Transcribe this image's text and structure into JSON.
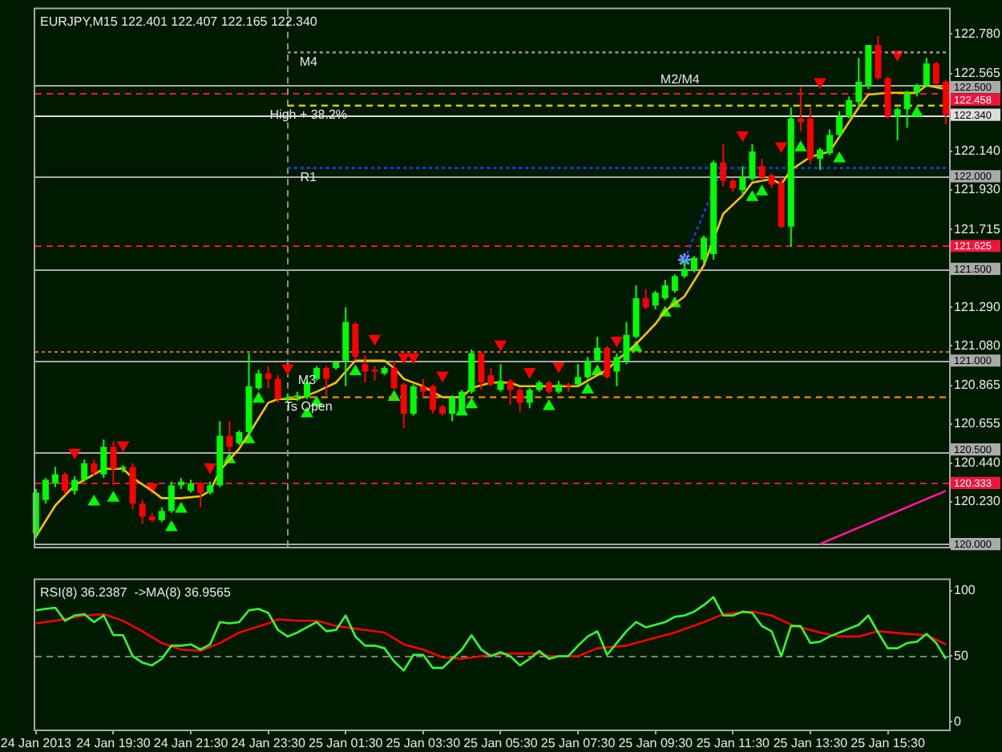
{
  "chart_data": [
    {
      "type": "candlestick",
      "title": "EURJPY,M15 122.401 122.407 122.165 122.340",
      "x": [
        "2013-01-24T17:30",
        "2013-01-24T17:45",
        "2013-01-24T18:00",
        "2013-01-24T18:15",
        "2013-01-24T18:30",
        "2013-01-24T18:45",
        "2013-01-24T19:00",
        "2013-01-24T19:15",
        "2013-01-24T19:30",
        "2013-01-24T19:45",
        "2013-01-24T20:00",
        "2013-01-24T20:15",
        "2013-01-24T20:30",
        "2013-01-24T20:45",
        "2013-01-24T21:00",
        "2013-01-24T21:15",
        "2013-01-24T21:30",
        "2013-01-24T21:45",
        "2013-01-24T22:00",
        "2013-01-24T22:15",
        "2013-01-24T22:30",
        "2013-01-24T22:45",
        "2013-01-24T23:00",
        "2013-01-24T23:15",
        "2013-01-24T23:30",
        "2013-01-24T23:45",
        "2013-01-25T00:00",
        "2013-01-25T00:15",
        "2013-01-25T00:30",
        "2013-01-25T00:45",
        "2013-01-25T01:00",
        "2013-01-25T01:15",
        "2013-01-25T01:30",
        "2013-01-25T01:45",
        "2013-01-25T02:00",
        "2013-01-25T02:15",
        "2013-01-25T02:30",
        "2013-01-25T02:45",
        "2013-01-25T03:00",
        "2013-01-25T03:15",
        "2013-01-25T03:30",
        "2013-01-25T03:45",
        "2013-01-25T04:00",
        "2013-01-25T04:15",
        "2013-01-25T04:30",
        "2013-01-25T04:45",
        "2013-01-25T05:00",
        "2013-01-25T05:15",
        "2013-01-25T05:30",
        "2013-01-25T05:45",
        "2013-01-25T06:00",
        "2013-01-25T06:15",
        "2013-01-25T06:30",
        "2013-01-25T06:45",
        "2013-01-25T07:00",
        "2013-01-25T07:15",
        "2013-01-25T07:30",
        "2013-01-25T07:45",
        "2013-01-25T08:00",
        "2013-01-25T08:15",
        "2013-01-25T08:30",
        "2013-01-25T08:45",
        "2013-01-25T09:00",
        "2013-01-25T09:15",
        "2013-01-25T09:30",
        "2013-01-25T09:45",
        "2013-01-25T10:00",
        "2013-01-25T10:15",
        "2013-01-25T10:30",
        "2013-01-25T10:45",
        "2013-01-25T11:00",
        "2013-01-25T11:15",
        "2013-01-25T11:30",
        "2013-01-25T11:45",
        "2013-01-25T12:00",
        "2013-01-25T12:15",
        "2013-01-25T12:30",
        "2013-01-25T12:45",
        "2013-01-25T13:00",
        "2013-01-25T13:15",
        "2013-01-25T13:30",
        "2013-01-25T13:45",
        "2013-01-25T14:00",
        "2013-01-25T14:15",
        "2013-01-25T14:30",
        "2013-01-25T14:45",
        "2013-01-25T15:00",
        "2013-01-25T15:15",
        "2013-01-25T15:30",
        "2013-01-25T15:45",
        "2013-01-25T16:00",
        "2013-01-25T16:15",
        "2013-01-25T16:30",
        "2013-01-25T16:45",
        "2013-01-25T17:00"
      ],
      "ohlc": [
        [
          120.06,
          120.3,
          120.03,
          120.28
        ],
        [
          120.24,
          120.36,
          120.22,
          120.35
        ],
        [
          120.33,
          120.42,
          120.31,
          120.38
        ],
        [
          120.38,
          120.39,
          120.27,
          120.29
        ],
        [
          120.29,
          120.37,
          120.27,
          120.35
        ],
        [
          120.35,
          120.46,
          120.34,
          120.44
        ],
        [
          120.44,
          120.46,
          120.37,
          120.39
        ],
        [
          120.38,
          120.57,
          120.36,
          120.53
        ],
        [
          120.53,
          120.56,
          120.32,
          120.41
        ],
        [
          120.41,
          120.43,
          120.39,
          120.42
        ],
        [
          120.42,
          120.44,
          120.19,
          120.22
        ],
        [
          120.22,
          120.24,
          120.11,
          120.15
        ],
        [
          120.15,
          120.17,
          120.12,
          120.13
        ],
        [
          120.13,
          120.2,
          120.12,
          120.18
        ],
        [
          120.18,
          120.34,
          120.17,
          120.32
        ],
        [
          120.32,
          120.36,
          120.3,
          120.34
        ],
        [
          120.29,
          120.35,
          120.28,
          120.33
        ],
        [
          120.33,
          120.34,
          120.2,
          120.28
        ],
        [
          120.28,
          120.34,
          120.27,
          120.32
        ],
        [
          120.32,
          120.67,
          120.31,
          120.59
        ],
        [
          120.59,
          120.67,
          120.5,
          120.53
        ],
        [
          120.55,
          120.62,
          120.54,
          120.61
        ],
        [
          120.61,
          121.04,
          120.59,
          120.86
        ],
        [
          120.85,
          120.95,
          120.84,
          120.93
        ],
        [
          120.93,
          120.97,
          120.85,
          120.9
        ],
        [
          120.9,
          120.92,
          120.77,
          120.79
        ],
        [
          120.79,
          120.82,
          120.77,
          120.8
        ],
        [
          120.8,
          120.83,
          120.78,
          120.81
        ],
        [
          120.8,
          120.89,
          120.79,
          120.88
        ],
        [
          120.9,
          120.97,
          120.89,
          120.96
        ],
        [
          120.96,
          120.97,
          120.81,
          120.9
        ],
        [
          120.96,
          121.0,
          120.95,
          120.99
        ],
        [
          121.0,
          121.29,
          120.86,
          121.21
        ],
        [
          121.2,
          121.21,
          121.0,
          121.02
        ],
        [
          120.98,
          121.03,
          120.88,
          120.94
        ],
        [
          120.95,
          120.97,
          120.89,
          120.94
        ],
        [
          120.93,
          120.97,
          120.92,
          120.96
        ],
        [
          120.96,
          121.0,
          120.84,
          120.85
        ],
        [
          120.87,
          120.88,
          120.63,
          120.71
        ],
        [
          120.71,
          120.87,
          120.7,
          120.86
        ],
        [
          120.86,
          120.9,
          120.8,
          120.83
        ],
        [
          120.86,
          120.87,
          120.71,
          120.73
        ],
        [
          120.75,
          120.76,
          120.7,
          120.71
        ],
        [
          120.71,
          120.81,
          120.67,
          120.8
        ],
        [
          120.73,
          120.84,
          120.72,
          120.83
        ],
        [
          120.83,
          121.06,
          120.82,
          121.04
        ],
        [
          121.04,
          121.05,
          120.84,
          120.88
        ],
        [
          120.92,
          120.96,
          120.86,
          120.87
        ],
        [
          120.84,
          120.98,
          120.83,
          120.89
        ],
        [
          120.89,
          120.9,
          120.76,
          120.84
        ],
        [
          120.84,
          120.85,
          120.72,
          120.77
        ],
        [
          120.77,
          120.85,
          120.74,
          120.84
        ],
        [
          120.84,
          120.89,
          120.83,
          120.88
        ],
        [
          120.88,
          120.89,
          120.82,
          120.83
        ],
        [
          120.83,
          120.89,
          120.82,
          120.87
        ],
        [
          120.87,
          120.88,
          120.83,
          120.86
        ],
        [
          120.87,
          120.98,
          120.86,
          120.91
        ],
        [
          120.91,
          121.02,
          120.9,
          121.0
        ],
        [
          121.0,
          121.13,
          120.99,
          121.07
        ],
        [
          121.07,
          121.08,
          120.9,
          120.91
        ],
        [
          120.94,
          121.04,
          120.86,
          121.02
        ],
        [
          121.0,
          121.21,
          120.98,
          121.14
        ],
        [
          121.13,
          121.41,
          121.12,
          121.34
        ],
        [
          121.34,
          121.39,
          121.28,
          121.29
        ],
        [
          121.3,
          121.38,
          121.28,
          121.37
        ],
        [
          121.34,
          121.44,
          121.33,
          121.41
        ],
        [
          121.38,
          121.47,
          121.37,
          121.46
        ],
        [
          121.46,
          121.55,
          121.45,
          121.5
        ],
        [
          121.49,
          121.57,
          121.48,
          121.56
        ],
        [
          121.55,
          121.68,
          121.53,
          121.67
        ],
        [
          121.58,
          122.09,
          121.55,
          122.08
        ],
        [
          122.08,
          122.18,
          121.95,
          121.98
        ],
        [
          121.98,
          121.99,
          121.92,
          121.94
        ],
        [
          121.93,
          122.06,
          121.9,
          122.0
        ],
        [
          121.99,
          122.18,
          121.98,
          122.14
        ],
        [
          122.06,
          122.1,
          121.98,
          122.0
        ],
        [
          122.01,
          122.02,
          121.94,
          121.96
        ],
        [
          121.97,
          122.0,
          121.72,
          121.73
        ],
        [
          121.73,
          122.38,
          121.62,
          122.32
        ],
        [
          122.32,
          122.49,
          122.25,
          122.3
        ],
        [
          122.32,
          122.38,
          122.07,
          122.1
        ],
        [
          122.1,
          122.16,
          122.04,
          122.15
        ],
        [
          122.13,
          122.26,
          122.12,
          122.23
        ],
        [
          122.23,
          122.36,
          122.22,
          122.33
        ],
        [
          122.33,
          122.44,
          122.32,
          122.42
        ],
        [
          122.41,
          122.65,
          122.38,
          122.52
        ],
        [
          122.5,
          122.72,
          122.48,
          122.72
        ],
        [
          122.72,
          122.77,
          122.53,
          122.54
        ],
        [
          122.54,
          122.55,
          122.32,
          122.33
        ],
        [
          122.33,
          122.38,
          122.2,
          122.37
        ],
        [
          122.37,
          122.47,
          122.27,
          122.46
        ],
        [
          122.46,
          122.51,
          122.44,
          122.5
        ],
        [
          122.5,
          122.65,
          122.49,
          122.62
        ],
        [
          122.62,
          122.63,
          122.5,
          122.51
        ],
        [
          122.52,
          122.53,
          122.29,
          122.34
        ]
      ],
      "colors": [
        "#00ff00",
        "#00ff00",
        "#00ff00",
        "#ff0000",
        "#00ff00",
        "#00ff00",
        "#ff0000",
        "#00ff00",
        "#ff0000",
        "#00ff00",
        "#ff0000",
        "#ff0000",
        "#ff0000",
        "#00ff00",
        "#00ff00",
        "#00ff00",
        "#00ff00",
        "#ff0000",
        "#00ff00",
        "#00ff00",
        "#ff0000",
        "#00ff00",
        "#00ff00",
        "#00ff00",
        "#ff0000",
        "#ff0000",
        "#00ff00",
        "#00ff00",
        "#00ff00",
        "#00ff00",
        "#ff0000",
        "#00ff00",
        "#00ff00",
        "#ff0000",
        "#ff0000",
        "#ff0000",
        "#00ff00",
        "#ff0000",
        "#ff0000",
        "#00ff00",
        "#ff0000",
        "#ff0000",
        "#ff0000",
        "#00ff00",
        "#00ff00",
        "#00ff00",
        "#ff0000",
        "#ff0000",
        "#00ff00",
        "#ff0000",
        "#ff0000",
        "#00ff00",
        "#00ff00",
        "#ff0000",
        "#00ff00",
        "#ff0000",
        "#00ff00",
        "#00ff00",
        "#00ff00",
        "#ff0000",
        "#00ff00",
        "#00ff00",
        "#00ff00",
        "#ff0000",
        "#00ff00",
        "#00ff00",
        "#00ff00",
        "#00ff00",
        "#00ff00",
        "#00ff00",
        "#00ff00",
        "#ff0000",
        "#ff0000",
        "#00ff00",
        "#00ff00",
        "#ff0000",
        "#ff0000",
        "#ff0000",
        "#00ff00",
        "#ff0000",
        "#ff0000",
        "#00ff00",
        "#00ff00",
        "#00ff00",
        "#00ff00",
        "#00ff00",
        "#00ff00",
        "#ff0000",
        "#ff0000",
        "#00ff00",
        "#00ff00",
        "#00ff00",
        "#00ff00",
        "#ff0000",
        "#ff0000"
      ],
      "series": [
        {
          "type": "line",
          "color": "#ffc000",
          "x": [
            "2013-01-24T17:30",
            "2013-01-24T18:00",
            "2013-01-24T18:30",
            "2013-01-24T19:00",
            "2013-01-24T19:15",
            "2013-01-24T19:45",
            "2013-01-24T20:00",
            "2013-01-24T20:30",
            "2013-01-24T20:45",
            "2013-01-24T21:15",
            "2013-01-24T21:45",
            "2013-01-24T22:00",
            "2013-01-24T22:15",
            "2013-01-24T22:45",
            "2013-01-24T23:00",
            "2013-01-24T23:30",
            "2013-01-24T23:45",
            "2013-01-25T00:15",
            "2013-01-25T00:45",
            "2013-01-25T01:15",
            "2013-01-25T01:45",
            "2013-01-25T02:30",
            "2013-01-25T02:45",
            "2013-01-25T03:00",
            "2013-01-25T03:30",
            "2013-01-25T04:00",
            "2013-01-25T04:30",
            "2013-01-25T04:45",
            "2013-01-25T05:15",
            "2013-01-25T05:45",
            "2013-01-25T06:00",
            "2013-01-25T07:30",
            "2013-01-25T07:45",
            "2013-01-25T08:15",
            "2013-01-25T08:30",
            "2013-01-25T09:00",
            "2013-01-25T09:30",
            "2013-01-25T09:45",
            "2013-01-25T10:15",
            "2013-01-25T10:45",
            "2013-01-25T11:00",
            "2013-01-25T11:15",
            "2013-01-25T11:45",
            "2013-01-25T12:00",
            "2013-01-25T12:30",
            "2013-01-25T12:45",
            "2013-01-25T13:00",
            "2013-01-25T13:30",
            "2013-01-25T14:00",
            "2013-01-25T14:15",
            "2013-01-25T14:45",
            "2013-01-25T15:00",
            "2013-01-25T15:30",
            "2013-01-25T16:15",
            "2013-01-25T16:30",
            "2013-01-25T17:00"
          ],
          "values": [
            120.04,
            120.21,
            120.32,
            120.38,
            120.41,
            120.41,
            120.36,
            120.29,
            120.25,
            120.25,
            120.26,
            120.29,
            120.4,
            120.52,
            120.6,
            120.77,
            120.79,
            120.79,
            120.83,
            120.88,
            121.0,
            121.0,
            120.96,
            120.9,
            120.86,
            120.8,
            120.8,
            120.85,
            120.88,
            120.88,
            120.86,
            120.86,
            120.89,
            120.95,
            121.0,
            121.09,
            121.2,
            121.27,
            121.35,
            121.52,
            121.66,
            121.8,
            121.9,
            121.97,
            121.99,
            121.96,
            122.04,
            122.11,
            122.14,
            122.22,
            122.38,
            122.45,
            122.46,
            122.46,
            122.5,
            122.48
          ]
        },
        {
          "type": "scatter",
          "color": "#00ff00",
          "marker": "triangle",
          "x": [
            "2013-01-24T19:00",
            "2013-01-24T19:30",
            "2013-01-24T21:00",
            "2013-01-24T21:15",
            "2013-01-24T22:30",
            "2013-01-24T23:00",
            "2013-01-24T23:15",
            "2013-01-25T00:30",
            "2013-01-25T00:45",
            "2013-01-25T01:45",
            "2013-01-25T02:45",
            "2013-01-25T04:30",
            "2013-01-25T04:45",
            "2013-01-25T06:45",
            "2013-01-25T07:45",
            "2013-01-25T08:00",
            "2013-01-25T09:00",
            "2013-01-25T09:45",
            "2013-01-25T10:00",
            "2013-01-25T12:00",
            "2013-01-25T12:15",
            "2013-01-25T13:15",
            "2013-01-25T14:15",
            "2013-01-25T16:15"
          ],
          "values": [
            120.23,
            120.25,
            120.09,
            120.19,
            120.46,
            120.57,
            120.79,
            120.71,
            120.77,
            120.94,
            120.8,
            120.72,
            120.76,
            120.75,
            120.84,
            120.94,
            121.07,
            121.26,
            121.31,
            121.89,
            121.92,
            122.16,
            122.1,
            122.35
          ]
        },
        {
          "type": "scatter",
          "color": "#ff0000",
          "marker": "triangle",
          "x": [
            "2013-01-24T18:30",
            "2013-01-24T19:45",
            "2013-01-24T20:30",
            "2013-01-24T22:00",
            "2013-01-25T00:00",
            "2013-01-25T02:15",
            "2013-01-25T03:00",
            "2013-01-25T03:15",
            "2013-01-25T04:00",
            "2013-01-25T05:30",
            "2013-01-25T06:15",
            "2013-01-25T07:00",
            "2013-01-25T08:30",
            "2013-01-25T11:45",
            "2013-01-25T12:45",
            "2013-01-25T13:45",
            "2013-01-25T15:45"
          ],
          "values": [
            120.5,
            120.54,
            120.31,
            120.42,
            120.96,
            121.12,
            121.02,
            121.02,
            120.92,
            121.09,
            120.94,
            120.97,
            121.11,
            122.23,
            122.17,
            122.52,
            122.67
          ]
        },
        {
          "type": "line",
          "name": "M4",
          "color": "#8c8c8c",
          "line_style": "dotted",
          "x": [
            "2013-01-25T00:00",
            "2013-01-25T17:00"
          ],
          "values": [
            122.68,
            122.68
          ]
        },
        {
          "type": "line",
          "name": "High + 38.2%",
          "color": "#d8c800",
          "line_style": "dashed",
          "x": [
            "2013-01-25T00:00",
            "2013-01-25T17:00"
          ],
          "values": [
            122.39,
            122.39
          ]
        },
        {
          "type": "line",
          "name": "R1",
          "color": "#1e3cff",
          "line_style": "dotted",
          "x": [
            "2013-01-25T00:00",
            "2013-01-25T17:00"
          ],
          "values": [
            122.05,
            122.05
          ]
        },
        {
          "type": "line",
          "name": "Ts Open",
          "color": "#e08000",
          "line_style": "dashed",
          "x": [
            "2013-01-25T00:00",
            "2013-01-25T17:00"
          ],
          "values": [
            120.8,
            120.8
          ]
        },
        {
          "type": "line",
          "color": "#1e3cff",
          "line_style": "dotted",
          "x": [
            "2013-01-25T10:15",
            "2013-01-25T11:15"
          ],
          "values": [
            121.55,
            122.06
          ]
        },
        {
          "type": "scatter",
          "color": "#7090ff",
          "marker": "cross",
          "x": [
            "2013-01-25T10:15"
          ],
          "values": [
            121.55
          ]
        },
        {
          "type": "line",
          "color": "#ff1493",
          "x": [
            "2013-01-25T13:45",
            "2013-01-25T17:00"
          ],
          "values": [
            120.0,
            120.29
          ]
        }
      ],
      "annotations": [
        {
          "text": "M3",
          "x": "2013-01-25T00:30",
          "y": 120.89
        },
        {
          "text": "M2/M4",
          "x": "2013-01-25T10:08",
          "y": 122.53
        }
      ],
      "ref_lines": [
        {
          "axis": "y",
          "value": 122.5,
          "label": "122.500",
          "color": "#aaaaaa"
        },
        {
          "axis": "y",
          "value": 122.458,
          "label": "122.458",
          "color": "#f0143c",
          "line_style": "dashed"
        },
        {
          "axis": "y",
          "value": 122.34,
          "label": "122.340",
          "color": "#dcdcdc"
        },
        {
          "axis": "y",
          "value": 122.0,
          "label": "122.000",
          "color": "#aaaaaa"
        },
        {
          "axis": "y",
          "value": 121.625,
          "label": "121.625",
          "color": "#f0143c",
          "line_style": "dashed"
        },
        {
          "axis": "y",
          "value": 121.5,
          "label": "121.500",
          "color": "#aaaaaa"
        },
        {
          "axis": "y",
          "value": 121.05,
          "color": "#d07010",
          "line_style": "dotted"
        },
        {
          "axis": "y",
          "value": 121.0,
          "label": "121.000",
          "color": "#aaaaaa"
        },
        {
          "axis": "y",
          "value": 120.5,
          "label": "120.500",
          "color": "#aaaaaa"
        },
        {
          "axis": "y",
          "value": 120.333,
          "label": "120.333",
          "color": "#f0143c",
          "line_style": "dashed"
        },
        {
          "axis": "y",
          "value": 120.0,
          "label": "120.000",
          "color": "#aaaaaa"
        },
        {
          "axis": "x",
          "value": "2013-01-25T00:00",
          "color": "#909090",
          "line_style": "dashed"
        }
      ],
      "xlim": [
        "2013-01-24T17:29",
        "2013-01-25T17:05"
      ],
      "ylim": [
        119.985,
        122.915
      ],
      "yticks": [
        {
          "value": 122.78,
          "label": "122.780"
        },
        122.565,
        {
          "value": 122.14,
          "label": "122.140"
        },
        {
          "value": 121.93,
          "label": "121.930"
        },
        121.715,
        {
          "value": 121.29,
          "label": "121.290"
        },
        {
          "value": 121.08,
          "label": "121.080"
        },
        120.865,
        120.655,
        {
          "value": 120.44,
          "label": "120.440"
        },
        {
          "value": 120.23,
          "label": "120.230"
        }
      ],
      "tick_labels": "y"
    },
    {
      "type": "line",
      "title": "RSI(8) 36.2387  ->MA(8) 36.9565",
      "x": [
        "2013-01-24T17:30",
        "2013-01-24T17:45",
        "2013-01-24T18:00",
        "2013-01-24T18:15",
        "2013-01-24T18:30",
        "2013-01-24T18:45",
        "2013-01-24T19:00",
        "2013-01-24T19:15",
        "2013-01-24T19:30",
        "2013-01-24T19:45",
        "2013-01-24T20:00",
        "2013-01-24T20:15",
        "2013-01-24T20:30",
        "2013-01-24T20:45",
        "2013-01-24T21:00",
        "2013-01-24T21:15",
        "2013-01-24T21:30",
        "2013-01-24T21:45",
        "2013-01-24T22:00",
        "2013-01-24T22:15",
        "2013-01-24T22:30",
        "2013-01-24T22:45",
        "2013-01-24T23:00",
        "2013-01-24T23:15",
        "2013-01-24T23:30",
        "2013-01-24T23:45",
        "2013-01-25T00:00",
        "2013-01-25T00:15",
        "2013-01-25T00:30",
        "2013-01-25T00:45",
        "2013-01-25T01:00",
        "2013-01-25T01:15",
        "2013-01-25T01:30",
        "2013-01-25T01:45",
        "2013-01-25T02:00",
        "2013-01-25T02:15",
        "2013-01-25T02:30",
        "2013-01-25T02:45",
        "2013-01-25T03:00",
        "2013-01-25T03:15",
        "2013-01-25T03:30",
        "2013-01-25T03:45",
        "2013-01-25T04:00",
        "2013-01-25T04:15",
        "2013-01-25T04:30",
        "2013-01-25T04:45",
        "2013-01-25T05:00",
        "2013-01-25T05:15",
        "2013-01-25T05:30",
        "2013-01-25T05:45",
        "2013-01-25T06:00",
        "2013-01-25T06:15",
        "2013-01-25T06:30",
        "2013-01-25T06:45",
        "2013-01-25T07:00",
        "2013-01-25T07:15",
        "2013-01-25T07:30",
        "2013-01-25T07:45",
        "2013-01-25T08:00",
        "2013-01-25T08:15",
        "2013-01-25T08:30",
        "2013-01-25T08:45",
        "2013-01-25T09:00",
        "2013-01-25T09:15",
        "2013-01-25T09:30",
        "2013-01-25T09:45",
        "2013-01-25T10:00",
        "2013-01-25T10:15",
        "2013-01-25T10:30",
        "2013-01-25T10:45",
        "2013-01-25T11:00",
        "2013-01-25T11:15",
        "2013-01-25T11:30",
        "2013-01-25T11:45",
        "2013-01-25T12:00",
        "2013-01-25T12:15",
        "2013-01-25T12:30",
        "2013-01-25T12:45",
        "2013-01-25T13:00",
        "2013-01-25T13:15",
        "2013-01-25T13:30",
        "2013-01-25T13:45",
        "2013-01-25T14:00",
        "2013-01-25T14:15",
        "2013-01-25T14:30",
        "2013-01-25T14:45",
        "2013-01-25T15:00",
        "2013-01-25T15:15",
        "2013-01-25T15:30",
        "2013-01-25T15:45",
        "2013-01-25T16:00",
        "2013-01-25T16:15",
        "2013-01-25T16:30",
        "2013-01-25T16:45",
        "2013-01-25T17:00"
      ],
      "series": [
        {
          "color": "#32ff32",
          "values": [
            85,
            86,
            87,
            77,
            81,
            82,
            76,
            81,
            66,
            66,
            50,
            45,
            43,
            48,
            58,
            58,
            59,
            55,
            59,
            76,
            75,
            76,
            85,
            86,
            83,
            70,
            65,
            68,
            72,
            76,
            69,
            70,
            81,
            65,
            58,
            58,
            56,
            46,
            39,
            51,
            51,
            41,
            41,
            48,
            55,
            66,
            55,
            50,
            53,
            50,
            43,
            48,
            54,
            48,
            50,
            50,
            58,
            65,
            69,
            51,
            60,
            69,
            76,
            72,
            74,
            76,
            80,
            81,
            84,
            89,
            95,
            81,
            81,
            84,
            83,
            73,
            69,
            50,
            73,
            73,
            60,
            61,
            65,
            68,
            71,
            74,
            81,
            68,
            56,
            56,
            60,
            61,
            67,
            60,
            48
          ]
        },
        {
          "color": "#ff0000",
          "x": [
            "2013-01-24T17:30",
            "2013-01-24T18:00",
            "2013-01-24T18:45",
            "2013-01-24T19:15",
            "2013-01-24T19:45",
            "2013-01-24T20:15",
            "2013-01-24T20:45",
            "2013-01-24T21:15",
            "2013-01-24T21:45",
            "2013-01-24T22:15",
            "2013-01-24T22:45",
            "2013-01-24T23:30",
            "2013-01-24T23:45",
            "2013-01-25T00:15",
            "2013-01-25T00:45",
            "2013-01-25T01:15",
            "2013-01-25T01:45",
            "2013-01-25T02:30",
            "2013-01-25T03:00",
            "2013-01-25T03:30",
            "2013-01-25T04:00",
            "2013-01-25T04:30",
            "2013-01-25T05:15",
            "2013-01-25T05:45",
            "2013-01-25T06:30",
            "2013-01-25T06:45",
            "2013-01-25T07:30",
            "2013-01-25T08:00",
            "2013-01-25T08:45",
            "2013-01-25T09:30",
            "2013-01-25T10:00",
            "2013-01-25T10:45",
            "2013-01-25T11:15",
            "2013-01-25T12:00",
            "2013-01-25T12:30",
            "2013-01-25T13:00",
            "2013-01-25T13:45",
            "2013-01-25T14:15",
            "2013-01-25T14:45",
            "2013-01-25T15:15",
            "2013-01-25T16:00",
            "2013-01-25T16:30",
            "2013-01-25T17:00"
          ],
          "values": [
            75,
            77,
            81,
            82,
            77,
            69,
            60,
            55,
            54,
            60,
            68,
            75,
            78,
            77,
            77,
            73,
            71,
            68,
            59,
            55,
            49,
            48,
            51,
            52,
            52,
            50,
            50,
            56,
            58,
            64,
            68,
            76,
            82,
            84,
            81,
            74,
            68,
            65,
            65,
            69,
            67,
            66,
            59
          ]
        }
      ],
      "ref_lines": [
        {
          "axis": "y",
          "value": 50,
          "color": "#808080",
          "line_style": "dashed"
        }
      ],
      "xlim": [
        "2013-01-24T17:29",
        "2013-01-25T17:05"
      ],
      "ylim": [
        -6,
        108
      ],
      "xticks": [
        {
          "value": "2013-01-24T17:30",
          "label": "24 Jan 2013"
        },
        {
          "value": "2013-01-24T19:30",
          "label": "24 Jan 19:30"
        },
        {
          "value": "2013-01-24T21:30",
          "label": "24 Jan 21:30"
        },
        {
          "value": "2013-01-24T23:30",
          "label": "24 Jan 23:30"
        },
        {
          "value": "2013-01-25T01:30",
          "label": "25 Jan 01:30"
        },
        {
          "value": "2013-01-25T03:30",
          "label": "25 Jan 03:30"
        },
        {
          "value": "2013-01-25T05:30",
          "label": "25 Jan 05:30"
        },
        {
          "value": "2013-01-25T07:30",
          "label": "25 Jan 07:30"
        },
        {
          "value": "2013-01-25T09:30",
          "label": "25 Jan 09:30"
        },
        {
          "value": "2013-01-25T11:30",
          "label": "25 Jan 11:30"
        },
        {
          "value": "2013-01-25T13:30",
          "label": "25 Jan 13:30"
        },
        {
          "value": "2013-01-25T15:30",
          "label": "25 Jan 15:30"
        }
      ],
      "yticks": [
        0,
        50,
        100
      ]
    }
  ]
}
